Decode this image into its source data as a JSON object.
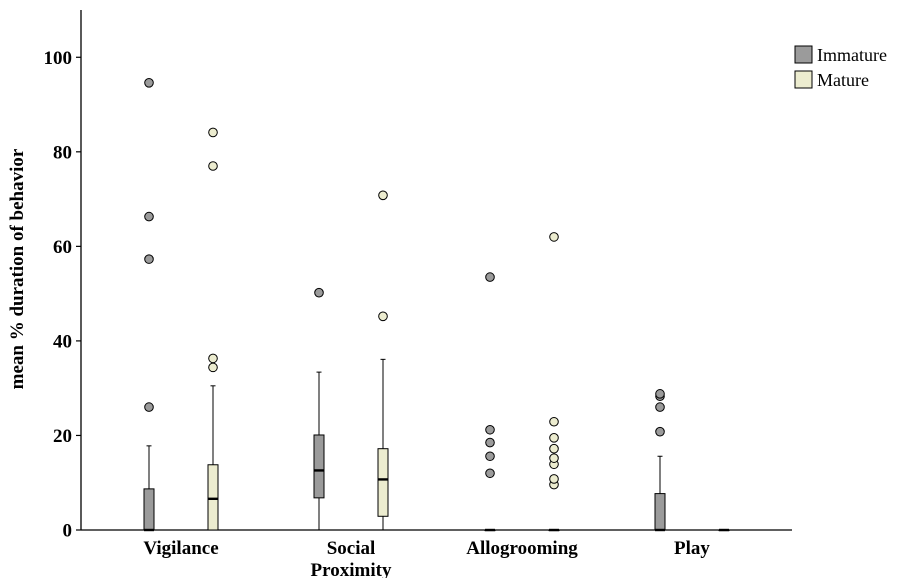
{
  "chart_data": {
    "type": "boxplot",
    "ylabel": "mean % duration of behavior",
    "ylim": [
      0,
      110
    ],
    "yticks": [
      "0",
      "20",
      "40",
      "60",
      "80",
      "100"
    ],
    "categories": [
      {
        "lines": [
          "Vigilance"
        ]
      },
      {
        "lines": [
          "Social",
          "Proximity"
        ]
      },
      {
        "lines": [
          "Allogrooming"
        ]
      },
      {
        "lines": [
          "Play"
        ]
      }
    ],
    "legend": {
      "position": "top-right"
    },
    "series": [
      {
        "name": "Immature",
        "color": "#9b9b9b",
        "boxes": [
          {
            "min": 0,
            "q1": 0,
            "median": 0,
            "q3": 8.7,
            "max": 17.8,
            "outliers": [
              26,
              57.3,
              66.3,
              94.6
            ]
          },
          {
            "min": 0,
            "q1": 6.8,
            "median": 12.6,
            "q3": 20.1,
            "max": 33.4,
            "outliers": [
              50.2
            ]
          },
          {
            "min": 0,
            "q1": 0,
            "median": 0,
            "q3": 0,
            "max": 0,
            "outliers": [
              12,
              15.6,
              18.5,
              21.2,
              53.5
            ]
          },
          {
            "min": 0,
            "q1": 0,
            "median": 0,
            "q3": 7.7,
            "max": 15.6,
            "outliers": [
              20.8,
              26,
              28.3,
              28.8
            ]
          }
        ]
      },
      {
        "name": "Mature",
        "color": "#ececcf",
        "boxes": [
          {
            "min": 0,
            "q1": 0,
            "median": 6.6,
            "q3": 13.8,
            "max": 30.5,
            "outliers": [
              34.4,
              36.3,
              77,
              84.1
            ]
          },
          {
            "min": 0,
            "q1": 2.9,
            "median": 10.7,
            "q3": 17.2,
            "max": 36.1,
            "outliers": [
              45.2,
              70.8
            ]
          },
          {
            "min": 0,
            "q1": 0,
            "median": 0,
            "q3": 0,
            "max": 0,
            "outliers": [
              9.6,
              10.8,
              13.9,
              15.2,
              17.2,
              19.5,
              22.9,
              62
            ]
          },
          {
            "min": 0,
            "q1": 0,
            "median": 0,
            "q3": 0,
            "max": 0,
            "outliers": []
          }
        ]
      }
    ]
  }
}
